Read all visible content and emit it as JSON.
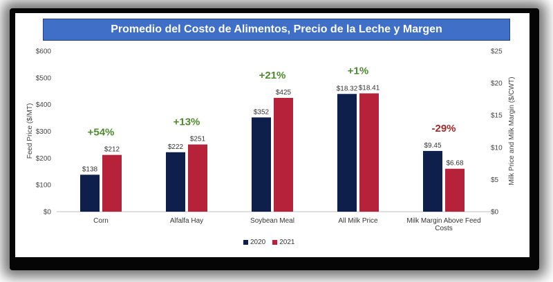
{
  "chart_data": {
    "type": "bar",
    "title": "Promedio del Costo de Alimentos, Precio de la Leche y Margen",
    "categories": [
      "Corn",
      "Alfalfa Hay",
      "Soybean Meal",
      "All Milk Price",
      "Milk Margin Above Feed Costs"
    ],
    "category_axis": [
      "left",
      "left",
      "left",
      "right",
      "right"
    ],
    "series": [
      {
        "name": "2020",
        "color": "#0f1f4b",
        "values": [
          138,
          222,
          352,
          18.32,
          9.45
        ],
        "labels": [
          "$138",
          "$222",
          "$352",
          "$18.32",
          "$9.45"
        ]
      },
      {
        "name": "2021",
        "color": "#b5223a",
        "values": [
          212,
          251,
          425,
          18.41,
          6.68
        ],
        "labels": [
          "$212",
          "$251",
          "$425",
          "$18.41",
          "$6.68"
        ]
      }
    ],
    "changes": [
      {
        "text": "+54%",
        "color": "#4e8a2f"
      },
      {
        "text": "+13%",
        "color": "#4e8a2f"
      },
      {
        "text": "+21%",
        "color": "#4e8a2f"
      },
      {
        "text": "+1%",
        "color": "#4e8a2f"
      },
      {
        "text": "-29%",
        "color": "#a32a2a"
      }
    ],
    "y_left": {
      "label": "Feed Price ($/MT)",
      "range": [
        0,
        600
      ],
      "ticks": [
        "$0",
        "$100",
        "$200",
        "$300",
        "$400",
        "$500",
        "$600"
      ]
    },
    "y_right": {
      "label": "Milk Price and Milk Margin ($/CWT)",
      "range": [
        0,
        25
      ],
      "ticks": [
        "$0",
        "$5",
        "$10",
        "$15",
        "$20",
        "$25"
      ]
    },
    "grid": false,
    "legend_position": "bottom"
  }
}
